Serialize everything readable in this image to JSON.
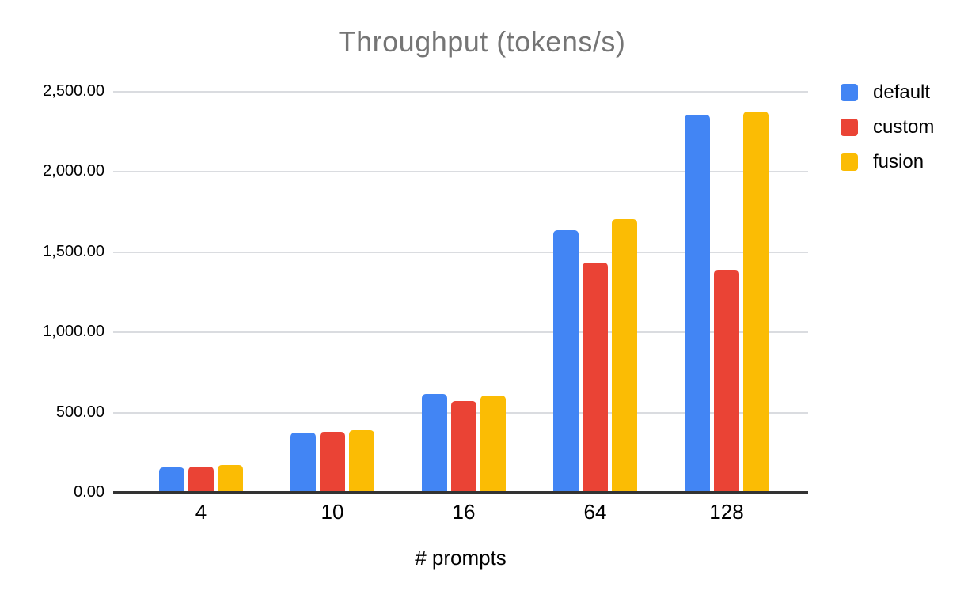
{
  "chart_data": {
    "type": "bar",
    "title": "Throughput (tokens/s)",
    "xlabel": "# prompts",
    "ylabel": "",
    "categories": [
      "4",
      "10",
      "16",
      "64",
      "128"
    ],
    "series": [
      {
        "name": "default",
        "color": "#4285F4",
        "values": [
          155,
          372,
          610,
          1632,
          2350
        ]
      },
      {
        "name": "custom",
        "color": "#EA4335",
        "values": [
          158,
          376,
          568,
          1430,
          1385
        ]
      },
      {
        "name": "fusion",
        "color": "#FBBC04",
        "values": [
          166,
          383,
          600,
          1700,
          2372
        ]
      }
    ],
    "y_ticks": [
      {
        "value": 0,
        "label": "0.00"
      },
      {
        "value": 500,
        "label": "500.00"
      },
      {
        "value": 1000,
        "label": "1,000.00"
      },
      {
        "value": 1500,
        "label": "1,500.00"
      },
      {
        "value": 2000,
        "label": "2,000.00"
      },
      {
        "value": 2500,
        "label": "2,500.00"
      }
    ],
    "ylim": [
      0,
      2500
    ],
    "grid": true,
    "legend_position": "right"
  },
  "colors": {
    "background": "#ffffff",
    "title_text": "#757575",
    "label_text": "#000000",
    "axis_line": "#333333",
    "gridline": "#dadce0"
  }
}
